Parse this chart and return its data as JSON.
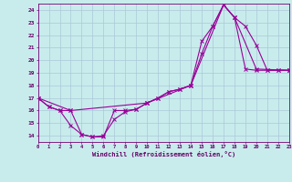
{
  "xlabel": "Windchill (Refroidissement éolien,°C)",
  "background_color": "#c8ecec",
  "grid_color": "#aac8d8",
  "line_color": "#990099",
  "xlim": [
    0,
    23
  ],
  "ylim": [
    13.5,
    24.5
  ],
  "yticks": [
    14,
    15,
    16,
    17,
    18,
    19,
    20,
    21,
    22,
    23,
    24
  ],
  "xticks": [
    0,
    1,
    2,
    3,
    4,
    5,
    6,
    7,
    8,
    9,
    10,
    11,
    12,
    13,
    14,
    15,
    16,
    17,
    18,
    19,
    20,
    21,
    22,
    23
  ],
  "curve1_x": [
    0,
    1,
    2,
    3,
    4,
    5,
    6,
    7,
    8,
    9,
    10,
    11,
    12,
    13,
    14,
    15,
    16,
    17,
    18,
    19,
    20,
    21,
    22,
    23
  ],
  "curve1_y": [
    17.0,
    16.3,
    16.0,
    16.0,
    14.1,
    13.9,
    13.9,
    16.0,
    16.0,
    16.1,
    16.6,
    17.0,
    17.5,
    17.7,
    18.0,
    21.5,
    22.7,
    24.4,
    23.4,
    19.3,
    19.2,
    19.2,
    19.2,
    19.2
  ],
  "curve2_x": [
    0,
    1,
    2,
    3,
    4,
    5,
    6,
    7,
    8,
    9,
    10,
    11,
    12,
    13,
    14,
    15,
    16,
    17,
    18,
    19,
    20,
    21,
    22,
    23
  ],
  "curve2_y": [
    17.0,
    16.3,
    16.0,
    14.8,
    14.1,
    13.9,
    14.0,
    15.3,
    15.9,
    16.1,
    16.6,
    17.0,
    17.5,
    17.7,
    18.0,
    20.5,
    22.7,
    24.4,
    23.4,
    22.7,
    21.2,
    19.2,
    19.2,
    19.2
  ],
  "curve3_x": [
    0,
    3,
    10,
    14,
    17,
    18,
    20,
    23
  ],
  "curve3_y": [
    17.0,
    16.0,
    16.6,
    18.0,
    24.4,
    23.4,
    19.3,
    19.2
  ]
}
